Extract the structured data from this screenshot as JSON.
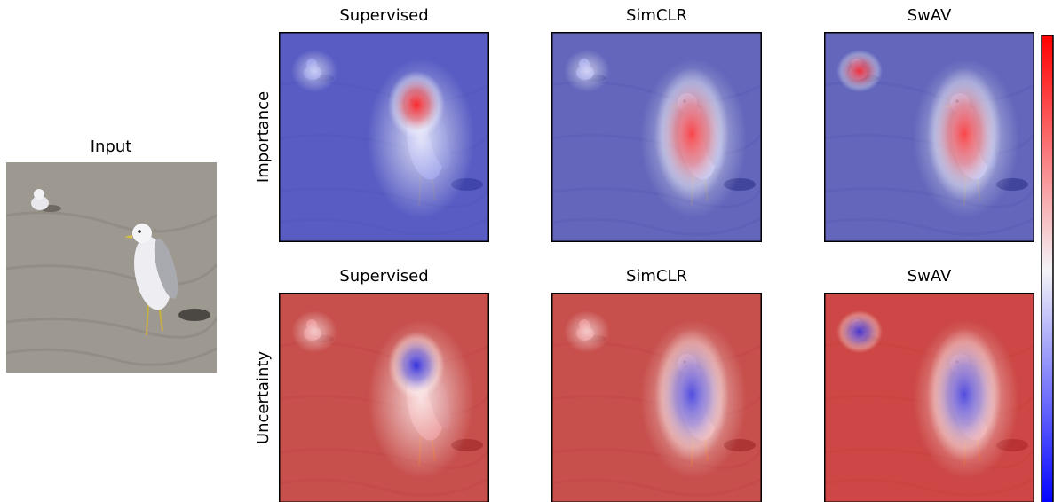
{
  "input": {
    "title": "Input"
  },
  "rows": [
    {
      "label": "Importance",
      "panels": [
        "Supervised",
        "SimCLR",
        "SwAV"
      ]
    },
    {
      "label": "Uncertainty",
      "panels": [
        "Supervised",
        "SimCLR",
        "SwAV"
      ]
    }
  ]
}
